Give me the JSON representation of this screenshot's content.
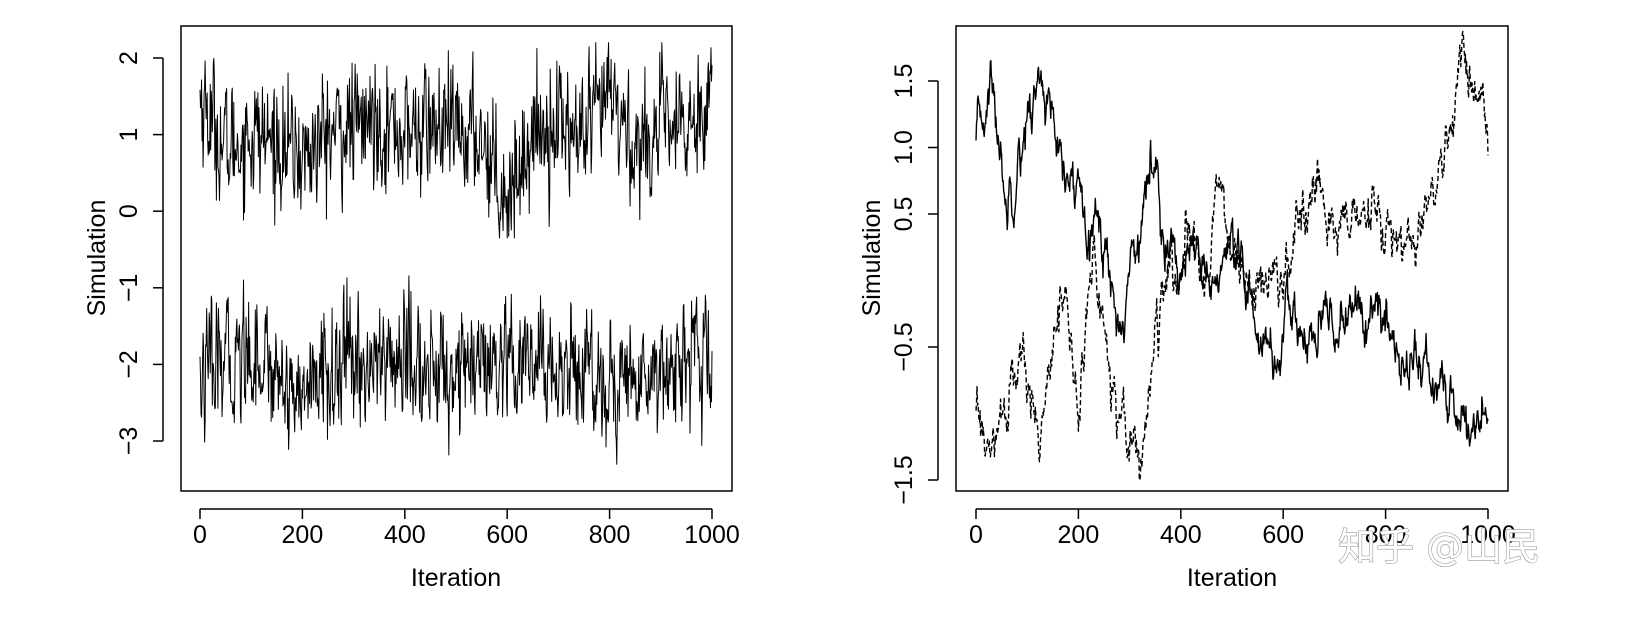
{
  "chart_data": [
    {
      "type": "line",
      "xlabel": "Iteration",
      "ylabel": "Simulation",
      "xlim": [
        0,
        1000
      ],
      "ylim": [
        -3.6,
        2.4
      ],
      "x_ticks": [
        0,
        200,
        400,
        600,
        800,
        1000
      ],
      "x_tick_labels": [
        "0",
        "200",
        "400",
        "600",
        "800",
        "1000"
      ],
      "y_ticks": [
        -3,
        -2,
        -1,
        0,
        1,
        2
      ],
      "y_tick_labels": [
        "−3",
        "−2",
        "−1",
        "0",
        "1",
        "2"
      ],
      "grid": false,
      "legend": "none",
      "series": [
        {
          "line_style": "solid",
          "x": [
            0,
            50,
            100,
            150,
            200,
            250,
            300,
            350,
            400,
            450,
            500,
            550,
            600,
            650,
            700,
            750,
            800,
            850,
            900,
            950,
            1000
          ],
          "values": [
            1.5,
            0.8,
            1.0,
            0.9,
            0.7,
            1.0,
            1.1,
            1.2,
            1.0,
            1.1,
            1.0,
            1.0,
            0.2,
            1.0,
            1.2,
            0.9,
            1.5,
            0.8,
            1.1,
            1.0,
            1.7
          ],
          "min": -0.35,
          "max": 2.2
        },
        {
          "line_style": "solid",
          "x": [
            0,
            50,
            100,
            150,
            200,
            250,
            300,
            350,
            400,
            450,
            500,
            550,
            600,
            650,
            700,
            750,
            800,
            850,
            900,
            950,
            1000
          ],
          "values": [
            -2.2,
            -2.0,
            -1.8,
            -2.1,
            -2.4,
            -2.1,
            -2.0,
            -2.0,
            -1.9,
            -2.2,
            -2.0,
            -2.1,
            -2.2,
            -2.0,
            -2.1,
            -2.0,
            -2.3,
            -2.2,
            -2.0,
            -1.9,
            -2.1
          ],
          "min": -3.4,
          "max": -0.65
        }
      ]
    },
    {
      "type": "line",
      "xlabel": "Iteration",
      "ylabel": "Simulation",
      "xlim": [
        0,
        1000
      ],
      "ylim": [
        -1.55,
        1.95
      ],
      "x_ticks": [
        0,
        200,
        400,
        600,
        800,
        1000
      ],
      "x_tick_labels": [
        "0",
        "200",
        "400",
        "600",
        "800",
        "1000"
      ],
      "y_ticks": [
        -1.5,
        -0.5,
        0.5,
        1.0,
        1.5
      ],
      "y_tick_labels": [
        "−1.5",
        "−0.5",
        "0.5",
        "1.0",
        "1.5"
      ],
      "grid": false,
      "legend": "none",
      "series": [
        {
          "line_style": "solid",
          "x": [
            0,
            30,
            60,
            90,
            130,
            170,
            210,
            250,
            280,
            320,
            350,
            380,
            420,
            460,
            500,
            550,
            580,
            620,
            660,
            700,
            740,
            780,
            820,
            860,
            900,
            940,
            980,
            1000
          ],
          "values": [
            1.0,
            1.5,
            0.6,
            1.1,
            1.55,
            0.7,
            0.7,
            0.3,
            -0.4,
            0.5,
            0.9,
            0.2,
            0.1,
            0.0,
            0.1,
            -0.3,
            -0.6,
            -0.3,
            -0.5,
            -0.3,
            -0.2,
            -0.3,
            -0.5,
            -0.6,
            -0.8,
            -1.0,
            -1.1,
            -0.9
          ]
        },
        {
          "line_style": "dashed",
          "x": [
            0,
            30,
            60,
            90,
            120,
            150,
            170,
            200,
            230,
            260,
            290,
            320,
            350,
            380,
            420,
            450,
            470,
            500,
            550,
            600,
            630,
            660,
            690,
            720,
            760,
            800,
            850,
            870,
            900,
            930,
            950,
            970,
            990,
            1000
          ],
          "values": [
            -1.0,
            -1.4,
            -0.9,
            -0.6,
            -1.2,
            -0.3,
            -0.1,
            -1.0,
            0.2,
            -0.6,
            -1.0,
            -1.4,
            -0.4,
            0.0,
            0.2,
            0.1,
            0.75,
            0.2,
            -0.1,
            0.0,
            0.3,
            0.6,
            0.4,
            0.5,
            0.4,
            0.4,
            0.2,
            0.4,
            0.6,
            1.2,
            1.8,
            1.3,
            1.4,
            0.9
          ]
        }
      ]
    }
  ],
  "watermark": {
    "text": "知乎 @山民"
  }
}
